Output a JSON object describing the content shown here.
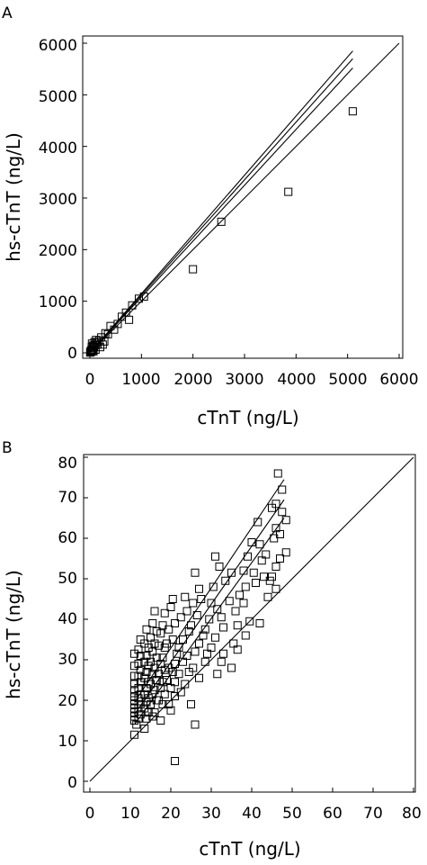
{
  "chart_data": [
    {
      "panel": "A",
      "type": "scatter",
      "xlabel": "cTnT (ng/L)",
      "ylabel": "hs-cTnT (ng/L)",
      "xlim": [
        -50,
        6000
      ],
      "ylim": [
        -80,
        6000
      ],
      "xticks": [
        0,
        1000,
        2000,
        3000,
        4000,
        5000,
        6000
      ],
      "yticks": [
        0,
        1000,
        2000,
        3000,
        4000,
        5000,
        6000
      ],
      "grid": false,
      "lines": [
        {
          "x1": 0,
          "y1": 0,
          "x2": 6000,
          "y2": 6000
        },
        {
          "x1": 0,
          "y1": 0,
          "x2": 5100,
          "y2": 5850
        },
        {
          "x1": 0,
          "y1": 0,
          "x2": 5100,
          "y2": 5700
        },
        {
          "x1": 0,
          "y1": 0,
          "x2": 5100,
          "y2": 5520
        }
      ],
      "points": [
        [
          5100,
          4680
        ],
        [
          3850,
          3120
        ],
        [
          2550,
          2540
        ],
        [
          2000,
          1620
        ],
        [
          1050,
          1090
        ],
        [
          950,
          1050
        ],
        [
          820,
          920
        ],
        [
          760,
          640
        ],
        [
          700,
          780
        ],
        [
          620,
          700
        ],
        [
          540,
          560
        ],
        [
          470,
          450
        ],
        [
          400,
          520
        ],
        [
          350,
          360
        ],
        [
          300,
          380
        ],
        [
          250,
          160
        ],
        [
          220,
          300
        ],
        [
          180,
          240
        ],
        [
          150,
          170
        ],
        [
          120,
          250
        ],
        [
          100,
          150
        ],
        [
          80,
          120
        ],
        [
          60,
          90
        ],
        [
          45,
          60
        ],
        [
          30,
          50
        ],
        [
          25,
          20
        ],
        [
          20,
          40
        ],
        [
          15,
          30
        ],
        [
          10,
          15
        ],
        [
          5,
          5
        ],
        [
          40,
          180
        ],
        [
          70,
          30
        ],
        [
          110,
          60
        ],
        [
          130,
          200
        ],
        [
          200,
          110
        ],
        [
          280,
          220
        ],
        [
          60,
          140
        ],
        [
          90,
          210
        ],
        [
          35,
          110
        ],
        [
          50,
          30
        ]
      ]
    },
    {
      "panel": "B",
      "type": "scatter",
      "xlabel": "cTnT (ng/L)",
      "ylabel": "hs-cTnT (ng/L)",
      "xlim": [
        -1,
        81
      ],
      "ylim": [
        -1,
        80
      ],
      "xticks": [
        0,
        10,
        20,
        30,
        40,
        50,
        60,
        70,
        80
      ],
      "yticks": [
        0,
        10,
        20,
        30,
        40,
        50,
        60,
        70,
        80
      ],
      "grid": false,
      "lines": [
        {
          "x1": 0,
          "y1": 0,
          "x2": 80,
          "y2": 80
        },
        {
          "x1": 11,
          "y1": 19.5,
          "x2": 48,
          "y2": 74.5
        },
        {
          "x1": 11,
          "y1": 16.5,
          "x2": 48,
          "y2": 69.5
        },
        {
          "x1": 11,
          "y1": 14,
          "x2": 48,
          "y2": 65
        }
      ],
      "points": [
        [
          46.5,
          76
        ],
        [
          47.5,
          72
        ],
        [
          46,
          68.5
        ],
        [
          45,
          67.5
        ],
        [
          47.5,
          66.5
        ],
        [
          48.5,
          64.5
        ],
        [
          46,
          62.5
        ],
        [
          47,
          61
        ],
        [
          45.5,
          60
        ],
        [
          48.5,
          56.5
        ],
        [
          47,
          55
        ],
        [
          46,
          53
        ],
        [
          45,
          50.5
        ],
        [
          44.5,
          49.5
        ],
        [
          46,
          47.5
        ],
        [
          41.5,
          64
        ],
        [
          40,
          59
        ],
        [
          42,
          58.5
        ],
        [
          43.5,
          56
        ],
        [
          42.5,
          54.5
        ],
        [
          39,
          55.5
        ],
        [
          38,
          52
        ],
        [
          40.5,
          51.5
        ],
        [
          43,
          50.5
        ],
        [
          41,
          49
        ],
        [
          44,
          45.5
        ],
        [
          38.5,
          48
        ],
        [
          37,
          46
        ],
        [
          38,
          44
        ],
        [
          36,
          42
        ],
        [
          39.5,
          39.5
        ],
        [
          42,
          39
        ],
        [
          35,
          51.5
        ],
        [
          33.5,
          49.5
        ],
        [
          34.5,
          44.5
        ],
        [
          32.5,
          40.5
        ],
        [
          33,
          38
        ],
        [
          36.5,
          38.5
        ],
        [
          38.5,
          36
        ],
        [
          35.5,
          34
        ],
        [
          36.5,
          32.5
        ],
        [
          35,
          28
        ],
        [
          33,
          31.5
        ],
        [
          31,
          55.5
        ],
        [
          32,
          53
        ],
        [
          30.5,
          48
        ],
        [
          30,
          44
        ],
        [
          31.5,
          42.5
        ],
        [
          29.5,
          40
        ],
        [
          28.5,
          37.5
        ],
        [
          31,
          35.5
        ],
        [
          30,
          33
        ],
        [
          32.5,
          29.5
        ],
        [
          31.5,
          26.5
        ],
        [
          29,
          31.5
        ],
        [
          27.5,
          45
        ],
        [
          26,
          51.5
        ],
        [
          27,
          47.5
        ],
        [
          25.5,
          44
        ],
        [
          26.5,
          41
        ],
        [
          25,
          38.5
        ],
        [
          28,
          36
        ],
        [
          27,
          34
        ],
        [
          26,
          32
        ],
        [
          28.5,
          29.5
        ],
        [
          25.5,
          28
        ],
        [
          27,
          25.5
        ],
        [
          24,
          42
        ],
        [
          23.5,
          45.5
        ],
        [
          22.5,
          40.5
        ],
        [
          24.5,
          37
        ],
        [
          23,
          35
        ],
        [
          22,
          33
        ],
        [
          24,
          31
        ],
        [
          23,
          29.5
        ],
        [
          21.5,
          31.5
        ],
        [
          24.5,
          27
        ],
        [
          22,
          26.5
        ],
        [
          23.5,
          24
        ],
        [
          21,
          24.5
        ],
        [
          22.5,
          22
        ],
        [
          25,
          19
        ],
        [
          26,
          14
        ],
        [
          21,
          5
        ],
        [
          20.5,
          45
        ],
        [
          20,
          43
        ],
        [
          21,
          39
        ],
        [
          19.5,
          37.5
        ],
        [
          20.5,
          35
        ],
        [
          19,
          34
        ],
        [
          21,
          29
        ],
        [
          19.5,
          28
        ],
        [
          20.5,
          27
        ],
        [
          19,
          25
        ],
        [
          20,
          23
        ],
        [
          21,
          21
        ],
        [
          19.5,
          19
        ],
        [
          20,
          17.5
        ],
        [
          18.5,
          41.5
        ],
        [
          18,
          38.5
        ],
        [
          17.5,
          36.5
        ],
        [
          18.5,
          33
        ],
        [
          17,
          33.5
        ],
        [
          18,
          30.5
        ],
        [
          17.5,
          29
        ],
        [
          18.5,
          27.5
        ],
        [
          17,
          26.5
        ],
        [
          18,
          24.5
        ],
        [
          17.5,
          23
        ],
        [
          18.5,
          21.5
        ],
        [
          17,
          20
        ],
        [
          18,
          19
        ],
        [
          17.5,
          15
        ],
        [
          16,
          42
        ],
        [
          15.5,
          39
        ],
        [
          16.5,
          37
        ],
        [
          15,
          35.5
        ],
        [
          16,
          34
        ],
        [
          15.5,
          32
        ],
        [
          16.5,
          30.5
        ],
        [
          15,
          29.5
        ],
        [
          16,
          28
        ],
        [
          15.5,
          26.5
        ],
        [
          16.5,
          25
        ],
        [
          15,
          24
        ],
        [
          16,
          22.5
        ],
        [
          15.5,
          21.5
        ],
        [
          16.5,
          20
        ],
        [
          15,
          19
        ],
        [
          16,
          17
        ],
        [
          15.5,
          16
        ],
        [
          14,
          37.5
        ],
        [
          13.5,
          34
        ],
        [
          14.5,
          33
        ],
        [
          14,
          31
        ],
        [
          13.5,
          29.5
        ],
        [
          14.5,
          28.5
        ],
        [
          14,
          27
        ],
        [
          13.5,
          25.5
        ],
        [
          14.5,
          24.5
        ],
        [
          14,
          23
        ],
        [
          13.5,
          21.5
        ],
        [
          14.5,
          20.5
        ],
        [
          14,
          19.5
        ],
        [
          13.5,
          18
        ],
        [
          14.5,
          17
        ],
        [
          14,
          15.5
        ],
        [
          13.5,
          13
        ],
        [
          12.5,
          35
        ],
        [
          12,
          32.5
        ],
        [
          12.5,
          31
        ],
        [
          12,
          29
        ],
        [
          12.5,
          27.5
        ],
        [
          12,
          26
        ],
        [
          12.5,
          24.5
        ],
        [
          12,
          23
        ],
        [
          12.5,
          21.5
        ],
        [
          12,
          20.5
        ],
        [
          12.5,
          19
        ],
        [
          12,
          18
        ],
        [
          12.5,
          16.5
        ],
        [
          12,
          15.5
        ],
        [
          11.5,
          14
        ],
        [
          11,
          31.5
        ],
        [
          11,
          28.5
        ],
        [
          11,
          26
        ],
        [
          11,
          24
        ],
        [
          11,
          22.5
        ],
        [
          11,
          21
        ],
        [
          11,
          20
        ],
        [
          11,
          19
        ],
        [
          11,
          18
        ],
        [
          11,
          17
        ],
        [
          11,
          16
        ],
        [
          11,
          15
        ],
        [
          11,
          11.5
        ]
      ]
    }
  ],
  "panel_a": {
    "label": "A",
    "xlabel": "cTnT (ng/L)",
    "ylabel": "hs-cTnT (ng/L)",
    "xticks": [
      "0",
      "1000",
      "2000",
      "3000",
      "4000",
      "5000",
      "6000"
    ],
    "yticks": [
      "0",
      "1000",
      "2000",
      "3000",
      "4000",
      "5000",
      "6000"
    ]
  },
  "panel_b": {
    "label": "B",
    "xlabel": "cTnT (ng/L)",
    "ylabel": "hs-cTnT (ng/L)",
    "xticks": [
      "0",
      "10",
      "20",
      "30",
      "40",
      "50",
      "60",
      "70",
      "80"
    ],
    "yticks": [
      "0",
      "10",
      "20",
      "30",
      "40",
      "50",
      "60",
      "70",
      "80"
    ]
  }
}
